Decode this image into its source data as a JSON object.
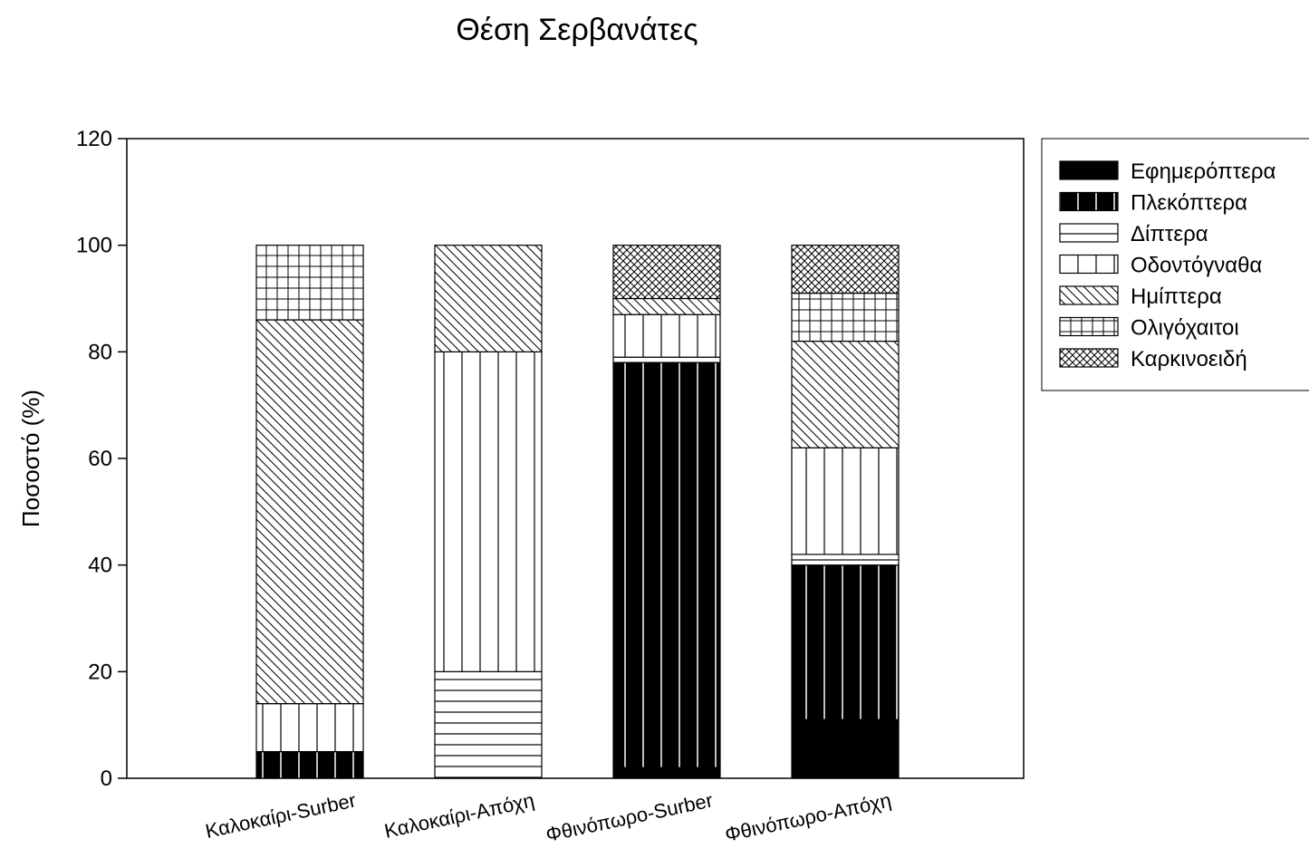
{
  "chart_data": {
    "type": "bar",
    "stacked": true,
    "title": "Θέση Σερβανάτες",
    "xlabel": "",
    "ylabel": "Ποσοστό (%)",
    "ylim": [
      0,
      120
    ],
    "yticks": [
      0,
      20,
      40,
      60,
      80,
      100,
      120
    ],
    "grid": false,
    "legend_position": "right-top",
    "categories": [
      "Καλοκαίρι-Surber",
      "Καλοκαίρι-Απόχη",
      "Φθινόπωρο-Surber",
      "Φθινόπωρο-Απόχη"
    ],
    "series": [
      {
        "name": "Εφημερόπτερα",
        "pattern": "solid",
        "values": [
          0,
          0,
          2,
          11
        ]
      },
      {
        "name": "Πλεκόπτερα",
        "pattern": "black-vlines",
        "values": [
          5,
          0,
          76,
          29
        ]
      },
      {
        "name": "Δίπτερα",
        "pattern": "hlines",
        "values": [
          0,
          20,
          1,
          2
        ]
      },
      {
        "name": "Οδοντόγναθα",
        "pattern": "vlines",
        "values": [
          9,
          60,
          8,
          20
        ]
      },
      {
        "name": "Ημίπτερα",
        "pattern": "diagonal",
        "values": [
          72,
          20,
          3,
          20
        ]
      },
      {
        "name": "Ολιγόχαιτοι",
        "pattern": "grid",
        "values": [
          14,
          0,
          0,
          9
        ]
      },
      {
        "name": "Καρκινοειδή",
        "pattern": "crosshatch",
        "values": [
          0,
          0,
          10,
          9
        ]
      }
    ]
  }
}
